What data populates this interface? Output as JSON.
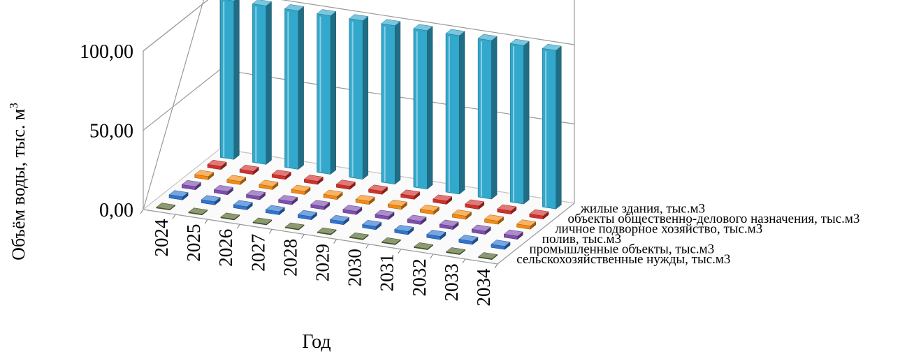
{
  "chart_data": {
    "type": "bar",
    "subtype": "3d-column",
    "title": "",
    "xlabel": "Год",
    "ylabel_main": "Объём воды, тыс. м",
    "ylabel_sup": "3",
    "ylim": [
      0,
      100
    ],
    "y_ticks": [
      "0,00",
      "50,00",
      "100,00"
    ],
    "y_tick_values": [
      0,
      50,
      100
    ],
    "grid": true,
    "categories": [
      "2024",
      "2025",
      "2026",
      "2027",
      "2028",
      "2029",
      "2030",
      "2031",
      "2032",
      "2033",
      "2034"
    ],
    "series": [
      {
        "name": "сельскохозяйственные нужды, тыс.м3",
        "color": "#4F6228",
        "values": [
          0.5,
          0.5,
          0.5,
          0.5,
          0.5,
          0.5,
          0.5,
          0.5,
          0.5,
          0.5,
          0.5
        ]
      },
      {
        "name": "промышленные объекты, тыс.м3",
        "color": "#2E75D0",
        "values": [
          2,
          2,
          2,
          2,
          2,
          2,
          2,
          2,
          2,
          2,
          2
        ]
      },
      {
        "name": "полив, тыс.м3",
        "color": "#7E4FB0",
        "values": [
          2,
          2,
          2,
          2,
          2,
          2,
          2,
          2,
          2,
          2,
          2
        ]
      },
      {
        "name": "личное подворное хозяйство, тыс.м3",
        "color": "#F58A12",
        "values": [
          2,
          2,
          2,
          2,
          2,
          2,
          2,
          2,
          2,
          2,
          2
        ]
      },
      {
        "name": "объекты общественно-делового назначения, тыс.м3",
        "color": "#D2302A",
        "values": [
          2,
          2,
          2,
          2,
          2,
          2,
          2,
          2,
          2,
          2,
          2
        ]
      },
      {
        "name": "жилые здания, тыс.м3",
        "color": "#31A8CC",
        "values": [
          100,
          100,
          100,
          100,
          100,
          100,
          100,
          100,
          100,
          100,
          100
        ]
      }
    ]
  }
}
